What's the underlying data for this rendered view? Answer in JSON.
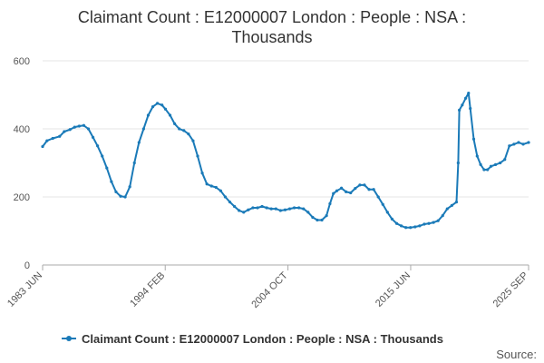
{
  "title_line1": "Claimant Count : E12000007 London : People : NSA :",
  "title_line2": "Thousands",
  "source_label": "Source:",
  "colors": {
    "series": "#1a7ab8",
    "grid": "#e6e6e6",
    "axis": "#aaaaaa",
    "text": "#555555"
  },
  "chart_data": {
    "type": "line",
    "title": "Claimant Count : E12000007 London : People : NSA : Thousands",
    "ylim": [
      0,
      600
    ],
    "yticks": [
      0,
      200,
      400,
      600
    ],
    "xlim": [
      1983.42,
      2025.67
    ],
    "xtick_labels": [
      {
        "label": "1983 JUN",
        "x": 1983.42
      },
      {
        "label": "1994 FEB",
        "x": 1994.08
      },
      {
        "label": "2004 OCT",
        "x": 2004.75
      },
      {
        "label": "2015 JUN",
        "x": 2015.42
      },
      {
        "label": "2025 SEP",
        "x": 2025.67
      }
    ],
    "grid": true,
    "legend_position": "bottom",
    "series": [
      {
        "name": "Claimant Count : E12000007 London : People : NSA : Thousands",
        "points": [
          [
            1983.42,
            348
          ],
          [
            1983.8,
            365
          ],
          [
            1984.3,
            372
          ],
          [
            1984.9,
            378
          ],
          [
            1985.3,
            392
          ],
          [
            1985.8,
            398
          ],
          [
            1986.2,
            405
          ],
          [
            1986.6,
            408
          ],
          [
            1987.0,
            410
          ],
          [
            1987.4,
            400
          ],
          [
            1987.8,
            375
          ],
          [
            1988.2,
            350
          ],
          [
            1988.6,
            320
          ],
          [
            1989.0,
            285
          ],
          [
            1989.4,
            245
          ],
          [
            1989.8,
            215
          ],
          [
            1990.2,
            202
          ],
          [
            1990.6,
            200
          ],
          [
            1991.0,
            230
          ],
          [
            1991.4,
            300
          ],
          [
            1991.8,
            360
          ],
          [
            1992.2,
            400
          ],
          [
            1992.6,
            440
          ],
          [
            1993.0,
            465
          ],
          [
            1993.4,
            475
          ],
          [
            1993.8,
            470
          ],
          [
            1994.1,
            458
          ],
          [
            1994.5,
            440
          ],
          [
            1994.9,
            415
          ],
          [
            1995.3,
            400
          ],
          [
            1995.7,
            395
          ],
          [
            1996.1,
            385
          ],
          [
            1996.5,
            365
          ],
          [
            1996.9,
            320
          ],
          [
            1997.3,
            270
          ],
          [
            1997.7,
            238
          ],
          [
            1998.1,
            232
          ],
          [
            1998.5,
            228
          ],
          [
            1998.9,
            218
          ],
          [
            1999.3,
            200
          ],
          [
            1999.7,
            185
          ],
          [
            2000.1,
            172
          ],
          [
            2000.5,
            160
          ],
          [
            2000.9,
            155
          ],
          [
            2001.3,
            162
          ],
          [
            2001.7,
            168
          ],
          [
            2002.1,
            168
          ],
          [
            2002.5,
            172
          ],
          [
            2002.9,
            168
          ],
          [
            2003.3,
            165
          ],
          [
            2003.7,
            165
          ],
          [
            2004.1,
            160
          ],
          [
            2004.5,
            162
          ],
          [
            2004.9,
            165
          ],
          [
            2005.3,
            168
          ],
          [
            2005.7,
            168
          ],
          [
            2006.1,
            165
          ],
          [
            2006.5,
            155
          ],
          [
            2006.9,
            140
          ],
          [
            2007.3,
            132
          ],
          [
            2007.7,
            132
          ],
          [
            2008.1,
            145
          ],
          [
            2008.4,
            180
          ],
          [
            2008.7,
            210
          ],
          [
            2009.0,
            218
          ],
          [
            2009.4,
            226
          ],
          [
            2009.8,
            215
          ],
          [
            2010.2,
            212
          ],
          [
            2010.6,
            225
          ],
          [
            2011.0,
            235
          ],
          [
            2011.4,
            235
          ],
          [
            2011.8,
            222
          ],
          [
            2012.2,
            222
          ],
          [
            2012.6,
            200
          ],
          [
            2013.0,
            178
          ],
          [
            2013.4,
            155
          ],
          [
            2013.8,
            135
          ],
          [
            2014.2,
            122
          ],
          [
            2014.6,
            115
          ],
          [
            2015.0,
            110
          ],
          [
            2015.4,
            110
          ],
          [
            2015.8,
            112
          ],
          [
            2016.2,
            115
          ],
          [
            2016.6,
            120
          ],
          [
            2017.0,
            122
          ],
          [
            2017.4,
            125
          ],
          [
            2017.8,
            130
          ],
          [
            2018.2,
            145
          ],
          [
            2018.6,
            165
          ],
          [
            2019.0,
            175
          ],
          [
            2019.4,
            185
          ],
          [
            2019.55,
            300
          ],
          [
            2019.65,
            455
          ],
          [
            2019.9,
            470
          ],
          [
            2020.2,
            490
          ],
          [
            2020.45,
            505
          ],
          [
            2020.6,
            460
          ],
          [
            2020.9,
            370
          ],
          [
            2021.2,
            320
          ],
          [
            2021.5,
            295
          ],
          [
            2021.8,
            280
          ],
          [
            2022.1,
            280
          ],
          [
            2022.4,
            290
          ],
          [
            2022.8,
            295
          ],
          [
            2023.2,
            300
          ],
          [
            2023.6,
            310
          ],
          [
            2024.0,
            350
          ],
          [
            2024.4,
            355
          ],
          [
            2024.8,
            360
          ],
          [
            2025.2,
            355
          ],
          [
            2025.67,
            360
          ]
        ]
      }
    ]
  }
}
